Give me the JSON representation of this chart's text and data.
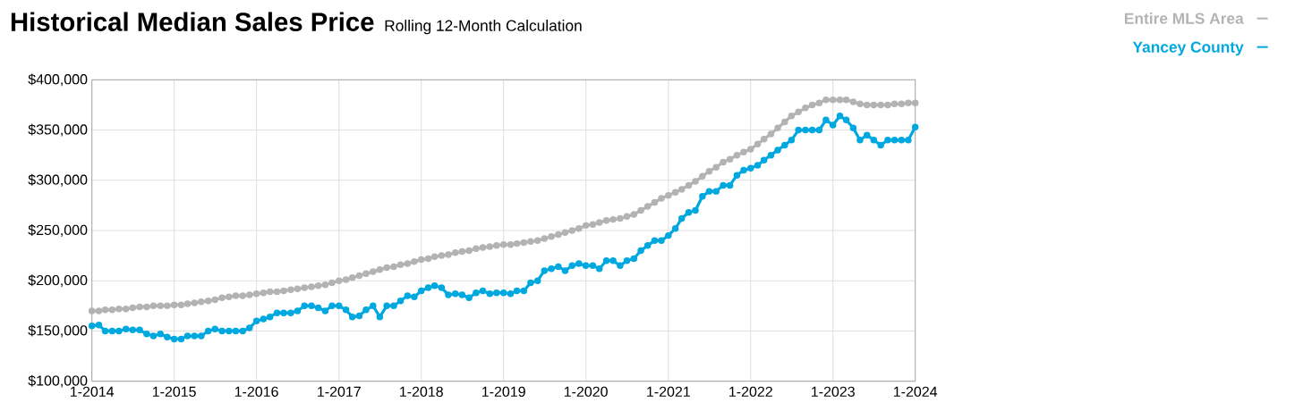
{
  "chart_data": {
    "type": "line",
    "title": "Historical Median Sales Price",
    "subtitle": "Rolling 12-Month Calculation",
    "x": [
      "2014-01",
      "2014-02",
      "2014-03",
      "2014-04",
      "2014-05",
      "2014-06",
      "2014-07",
      "2014-08",
      "2014-09",
      "2014-10",
      "2014-11",
      "2014-12",
      "2015-01",
      "2015-02",
      "2015-03",
      "2015-04",
      "2015-05",
      "2015-06",
      "2015-07",
      "2015-08",
      "2015-09",
      "2015-10",
      "2015-11",
      "2015-12",
      "2016-01",
      "2016-02",
      "2016-03",
      "2016-04",
      "2016-05",
      "2016-06",
      "2016-07",
      "2016-08",
      "2016-09",
      "2016-10",
      "2016-11",
      "2016-12",
      "2017-01",
      "2017-02",
      "2017-03",
      "2017-04",
      "2017-05",
      "2017-06",
      "2017-07",
      "2017-08",
      "2017-09",
      "2017-10",
      "2017-11",
      "2017-12",
      "2018-01",
      "2018-02",
      "2018-03",
      "2018-04",
      "2018-05",
      "2018-06",
      "2018-07",
      "2018-08",
      "2018-09",
      "2018-10",
      "2018-11",
      "2018-12",
      "2019-01",
      "2019-02",
      "2019-03",
      "2019-04",
      "2019-05",
      "2019-06",
      "2019-07",
      "2019-08",
      "2019-09",
      "2019-10",
      "2019-11",
      "2019-12",
      "2020-01",
      "2020-02",
      "2020-03",
      "2020-04",
      "2020-05",
      "2020-06",
      "2020-07",
      "2020-08",
      "2020-09",
      "2020-10",
      "2020-11",
      "2020-12",
      "2021-01",
      "2021-02",
      "2021-03",
      "2021-04",
      "2021-05",
      "2021-06",
      "2021-07",
      "2021-08",
      "2021-09",
      "2021-10",
      "2021-11",
      "2021-12",
      "2022-01",
      "2022-02",
      "2022-03",
      "2022-04",
      "2022-05",
      "2022-06",
      "2022-07",
      "2022-08",
      "2022-09",
      "2022-10",
      "2022-11",
      "2022-12",
      "2023-01",
      "2023-02",
      "2023-03",
      "2023-04",
      "2023-05",
      "2023-06",
      "2023-07",
      "2023-08",
      "2023-09",
      "2023-10",
      "2023-11",
      "2023-12",
      "2024-01"
    ],
    "series": [
      {
        "name": "Entire MLS Area",
        "color": "#b3b3b3",
        "values": [
          170000,
          170000,
          171000,
          171000,
          172000,
          172000,
          173000,
          174000,
          174000,
          175000,
          175000,
          175000,
          176000,
          176000,
          177000,
          178000,
          179000,
          180000,
          181000,
          183000,
          184000,
          185000,
          185000,
          186000,
          187000,
          188000,
          189000,
          189000,
          190000,
          191000,
          192000,
          193000,
          194000,
          195000,
          196000,
          198000,
          200000,
          201000,
          203000,
          205000,
          207000,
          209000,
          211000,
          213000,
          214000,
          216000,
          217000,
          219000,
          221000,
          222000,
          224000,
          225000,
          226000,
          228000,
          229000,
          230000,
          232000,
          233000,
          234000,
          235000,
          236000,
          236000,
          237000,
          238000,
          239000,
          240000,
          242000,
          244000,
          246000,
          248000,
          250000,
          252000,
          255000,
          256000,
          258000,
          260000,
          261000,
          262000,
          264000,
          266000,
          270000,
          274000,
          278000,
          282000,
          285000,
          288000,
          291000,
          295000,
          299000,
          304000,
          309000,
          313000,
          318000,
          321000,
          325000,
          328000,
          331000,
          336000,
          341000,
          346000,
          352000,
          358000,
          364000,
          368000,
          372000,
          375000,
          377000,
          380000,
          380000,
          380000,
          380000,
          378000,
          376000,
          375000,
          375000,
          375000,
          375000,
          376000,
          376000,
          377000,
          377000
        ]
      },
      {
        "name": "Yancey County",
        "color": "#00a8e0",
        "values": [
          155000,
          156000,
          150000,
          150000,
          150000,
          152000,
          151000,
          151000,
          147000,
          145000,
          147000,
          144000,
          142000,
          142000,
          145000,
          145000,
          145000,
          150000,
          152000,
          150000,
          150000,
          150000,
          150000,
          153000,
          160000,
          162000,
          164000,
          168000,
          168000,
          168000,
          170000,
          175000,
          175000,
          173000,
          170000,
          175000,
          175000,
          171000,
          164000,
          165000,
          171000,
          175000,
          164000,
          175000,
          175000,
          180000,
          185000,
          184000,
          190000,
          193000,
          195000,
          193000,
          186000,
          187000,
          186000,
          183000,
          188000,
          190000,
          187000,
          188000,
          188000,
          187000,
          190000,
          190000,
          198000,
          200000,
          210000,
          212000,
          214000,
          210000,
          215000,
          217000,
          215000,
          215000,
          212000,
          220000,
          220000,
          215000,
          220000,
          222000,
          230000,
          235000,
          240000,
          240000,
          245000,
          252000,
          262000,
          268000,
          270000,
          284000,
          289000,
          289000,
          295000,
          295000,
          305000,
          310000,
          312000,
          315000,
          320000,
          325000,
          330000,
          335000,
          340000,
          350000,
          350000,
          350000,
          350000,
          360000,
          355000,
          364000,
          360000,
          352000,
          340000,
          345000,
          340000,
          335000,
          340000,
          340000,
          340000,
          340000,
          353000
        ]
      }
    ],
    "xlim": [
      "2014-01",
      "2024-01"
    ],
    "xticks": [
      {
        "value": "2014-01",
        "label": "1-2014"
      },
      {
        "value": "2015-01",
        "label": "1-2015"
      },
      {
        "value": "2016-01",
        "label": "1-2016"
      },
      {
        "value": "2017-01",
        "label": "1-2017"
      },
      {
        "value": "2018-01",
        "label": "1-2018"
      },
      {
        "value": "2019-01",
        "label": "1-2019"
      },
      {
        "value": "2020-01",
        "label": "1-2020"
      },
      {
        "value": "2021-01",
        "label": "1-2021"
      },
      {
        "value": "2022-01",
        "label": "1-2022"
      },
      {
        "value": "2023-01",
        "label": "1-2023"
      },
      {
        "value": "2024-01",
        "label": "1-2024"
      }
    ],
    "ylim": [
      100000,
      400000
    ],
    "yticks": [
      {
        "value": 100000,
        "label": "$100,000"
      },
      {
        "value": 150000,
        "label": "$150,000"
      },
      {
        "value": 200000,
        "label": "$200,000"
      },
      {
        "value": 250000,
        "label": "$250,000"
      },
      {
        "value": 300000,
        "label": "$300,000"
      },
      {
        "value": 350000,
        "label": "$350,000"
      },
      {
        "value": 400000,
        "label": "$400,000"
      }
    ],
    "grid": true,
    "legend": "top right",
    "marker": "circle",
    "line_style": "solid"
  }
}
